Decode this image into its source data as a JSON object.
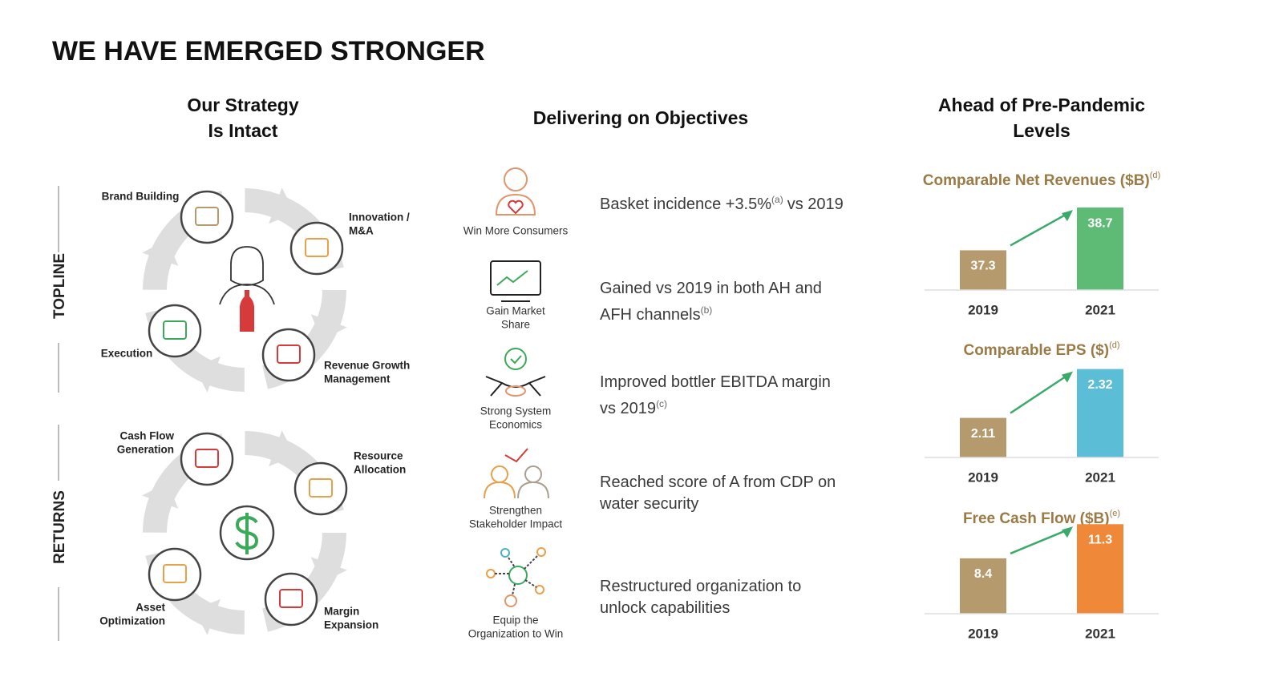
{
  "title": "WE HAVE EMERGED STRONGER",
  "columns": [
    {
      "header_lines": [
        "Our Strategy",
        "Is Intact"
      ]
    },
    {
      "header_lines": [
        "Delivering on Objectives"
      ]
    },
    {
      "header_lines": [
        "Ahead of Pre-Pandemic",
        "Levels"
      ]
    }
  ],
  "strategy": {
    "groups": [
      {
        "label": "TOPLINE",
        "items": [
          {
            "label_lines": [
              "Brand Building"
            ]
          },
          {
            "label_lines": [
              "Innovation /",
              "M&A"
            ]
          },
          {
            "label_lines": [
              "Revenue Growth",
              "Management"
            ]
          },
          {
            "label_lines": [
              "Execution"
            ]
          }
        ]
      },
      {
        "label": "RETURNS",
        "items": [
          {
            "label_lines": [
              "Cash Flow",
              "Generation"
            ]
          },
          {
            "label_lines": [
              "Resource",
              "Allocation"
            ]
          },
          {
            "label_lines": [
              "Margin",
              "Expansion"
            ]
          },
          {
            "label_lines": [
              "Asset",
              "Optimization"
            ]
          }
        ]
      }
    ]
  },
  "objectives": [
    {
      "icon_label_lines": [
        "Win More Consumers"
      ],
      "text": "Basket incidence +3.5%",
      "note": "(a)",
      "text_after": "vs 2019"
    },
    {
      "icon_label_lines": [
        "Gain Market",
        "Share"
      ],
      "text": "Gained vs 2019 in both AH and AFH channels",
      "note": "(b)"
    },
    {
      "icon_label_lines": [
        "Strong System",
        "Economics"
      ],
      "text": "Improved bottler EBITDA margin vs 2019",
      "note": "(c)"
    },
    {
      "icon_label_lines": [
        "Strengthen",
        "Stakeholder Impact"
      ],
      "text": "Reached score of A from CDP on water security"
    },
    {
      "icon_label_lines": [
        "Equip the",
        "Organization to Win"
      ],
      "text": "Restructured organization to unlock capabilities"
    }
  ],
  "chart_data": [
    {
      "type": "bar",
      "title": "Comparable Net Revenues ($B)",
      "title_note": "(d)",
      "categories": [
        "2019",
        "2021"
      ],
      "values": [
        37.3,
        38.7
      ],
      "colors": [
        "#b59a6d",
        "#5dbb76"
      ],
      "ylim": [
        36,
        39.2
      ]
    },
    {
      "type": "bar",
      "title": "Comparable EPS ($)",
      "title_note": "(d)",
      "categories": [
        "2019",
        "2021"
      ],
      "values": [
        2.11,
        2.32
      ],
      "colors": [
        "#b59a6d",
        "#5bbdd6"
      ],
      "ylim": [
        1.94,
        2.36
      ]
    },
    {
      "type": "bar",
      "title": "Free Cash Flow ($B)",
      "title_note": "(e)",
      "categories": [
        "2019",
        "2021"
      ],
      "values": [
        8.4,
        11.3
      ],
      "colors": [
        "#b59a6d",
        "#f0883a"
      ],
      "ylim": [
        3.7,
        12
      ]
    }
  ]
}
